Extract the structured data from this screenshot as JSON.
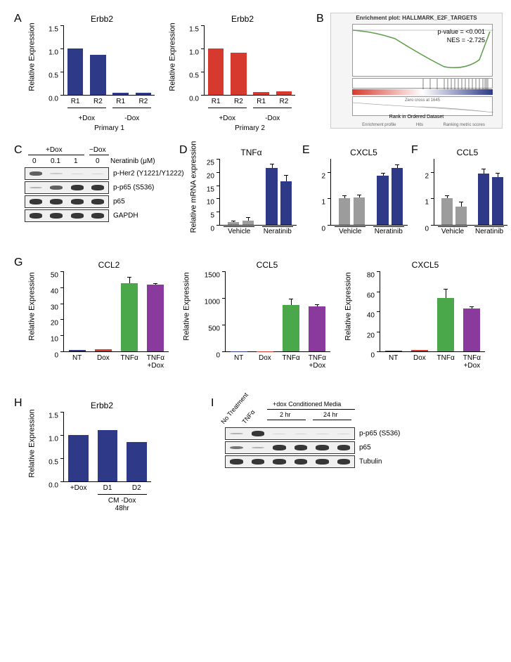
{
  "panelA": {
    "chart1": {
      "title": "Erbb2",
      "ylabel": "Relative Expression",
      "ylim": [
        0,
        1.5
      ],
      "ytick_step": 0.5,
      "categories": [
        "R1",
        "R2",
        "R1",
        "R2"
      ],
      "values": [
        1.0,
        0.87,
        0.05,
        0.05
      ],
      "groups": [
        "+Dox",
        "-Dox"
      ],
      "bar_color": "#2e3a87",
      "sublabel": "Primary 1"
    },
    "chart2": {
      "title": "Erbb2",
      "ylabel": "Relative Expression",
      "ylim": [
        0,
        1.5
      ],
      "ytick_step": 0.5,
      "categories": [
        "R1",
        "R2",
        "R1",
        "R2"
      ],
      "values": [
        1.0,
        0.91,
        0.06,
        0.07
      ],
      "groups": [
        "+Dox",
        "-Dox"
      ],
      "bar_color": "#d63a2e",
      "sublabel": "Primary 2"
    }
  },
  "panelB": {
    "title": "Enrichment plot: HALLMARK_E2F_TARGETS",
    "pvalue": "p-value = <0.001",
    "nes": "NES = -2.725",
    "xlabel": "Rank in Ordered Dataset",
    "legend": [
      "Enrichment profile",
      "Hits",
      "Ranking metric scores"
    ],
    "zero_cross": "Zero cross at 1645"
  },
  "panelC": {
    "header_groups": [
      "+Dox",
      "−Dox"
    ],
    "doses": [
      "0",
      "0.1",
      "1",
      "0"
    ],
    "dose_label": "Neratinib (μM)",
    "rows": [
      "p-Her2 (Y1221/Y1222)",
      "p-p65 (S536)",
      "p65",
      "GAPDH"
    ],
    "band_intensities": [
      [
        0.7,
        0.2,
        0.1,
        0.05
      ],
      [
        0.3,
        0.7,
        0.9,
        0.9
      ],
      [
        0.9,
        0.9,
        0.9,
        0.9
      ],
      [
        0.9,
        0.9,
        0.9,
        0.9
      ]
    ]
  },
  "panelD": {
    "title": "TNFα",
    "ylabel": "Relative mRNA expression",
    "ylim": [
      0,
      25
    ],
    "ytick_step": 5,
    "categories": [
      "Vehicle",
      "Neratinib"
    ],
    "values": [
      [
        1.0,
        1.5
      ],
      [
        21.5,
        16.5
      ]
    ],
    "errors": [
      [
        0.3,
        1.2
      ],
      [
        1.5,
        2.0
      ]
    ],
    "colors": [
      "#9c9c9c",
      "#2e3a87"
    ]
  },
  "panelE": {
    "title": "CXCL5",
    "ylabel": "",
    "ylim": [
      0,
      2.5
    ],
    "yticks": [
      0,
      1,
      2
    ],
    "categories": [
      "Vehicle",
      "Neratinib"
    ],
    "values": [
      [
        1.0,
        1.03
      ],
      [
        1.85,
        2.15
      ]
    ],
    "errors": [
      [
        0.08,
        0.08
      ],
      [
        0.1,
        0.1
      ]
    ],
    "colors": [
      "#9c9c9c",
      "#2e3a87"
    ]
  },
  "panelF": {
    "title": "CCL5",
    "ylabel": "",
    "ylim": [
      0,
      2.5
    ],
    "yticks": [
      0,
      1,
      2
    ],
    "categories": [
      "Vehicle",
      "Neratinib"
    ],
    "values": [
      [
        1.0,
        0.7
      ],
      [
        1.95,
        1.8
      ]
    ],
    "errors": [
      [
        0.08,
        0.15
      ],
      [
        0.15,
        0.15
      ]
    ],
    "colors": [
      "#9c9c9c",
      "#2e3a87"
    ]
  },
  "panelG": {
    "chart1": {
      "title": "CCL2",
      "ylabel": "Relative Expression",
      "ylim": [
        0,
        50
      ],
      "ytick_step": 10,
      "categories": [
        "NT",
        "Dox",
        "TNFα",
        "TNFα\n+Dox"
      ],
      "values": [
        1.0,
        1.2,
        42.5,
        41.5
      ],
      "errors": [
        0,
        0,
        3.5,
        0.5
      ],
      "colors": [
        "#2e3a87",
        "#d63a2e",
        "#4aa84a",
        "#8a3a9c"
      ]
    },
    "chart2": {
      "title": "CCL5",
      "ylabel": "Relative Expression",
      "ylim": [
        0,
        1500
      ],
      "ytick_step": 500,
      "categories": [
        "NT",
        "Dox",
        "TNFα",
        "TNFα\n+Dox"
      ],
      "values": [
        2,
        2,
        870,
        840
      ],
      "errors": [
        0,
        0,
        110,
        30
      ],
      "colors": [
        "#2e3a87",
        "#d63a2e",
        "#4aa84a",
        "#8a3a9c"
      ]
    },
    "chart3": {
      "title": "CXCL5",
      "ylabel": "Relative Expression",
      "ylim": [
        0,
        80
      ],
      "ytick_step": 20,
      "categories": [
        "NT",
        "Dox",
        "TNFα",
        "TNFα\n+Dox"
      ],
      "values": [
        0.5,
        1.5,
        53,
        43
      ],
      "errors": [
        0,
        0,
        9,
        1
      ],
      "colors": [
        "#2e3a87",
        "#d63a2e",
        "#4aa84a",
        "#8a3a9c"
      ]
    }
  },
  "panelH": {
    "title": "Erbb2",
    "ylabel": "Relative Expression",
    "ylim": [
      0,
      1.5
    ],
    "ytick_step": 0.5,
    "categories": [
      "+Dox",
      "D1",
      "D2"
    ],
    "values": [
      1.0,
      1.1,
      0.85
    ],
    "bar_color": "#2e3a87",
    "group_label": "CM -Dox 48hr"
  },
  "panelI": {
    "col_labels": [
      "No Treatment",
      "TNFα"
    ],
    "group_label": "+dox Conditioned Media",
    "sub_labels": [
      "2 hr",
      "24 hr"
    ],
    "rows": [
      "p-p65 (S536)",
      "p65",
      "Tubulin"
    ],
    "band_intensities": [
      [
        0.3,
        0.9,
        0.1,
        0.05,
        0.05,
        0.05
      ],
      [
        0.6,
        0.3,
        0.9,
        0.9,
        0.9,
        0.9
      ],
      [
        0.9,
        0.9,
        0.9,
        0.9,
        0.9,
        0.9
      ]
    ]
  }
}
